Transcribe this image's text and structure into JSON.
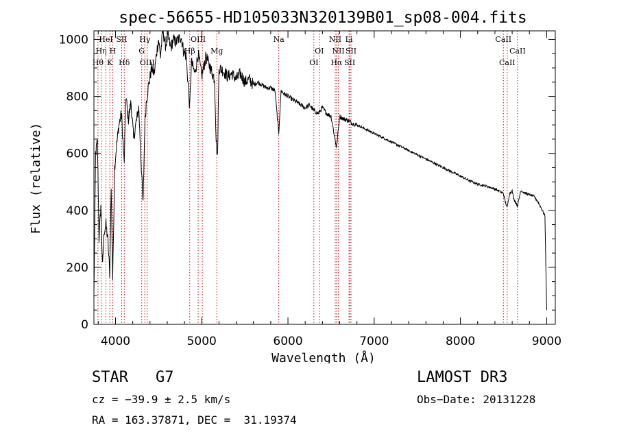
{
  "chart_data": {
    "type": "line",
    "title": "spec-56655-HD105033N320139B01_sp08-004.fits",
    "xlabel": "Wavelength (Å)",
    "ylabel": "Flux (relative)",
    "xlim": [
      3750,
      9100
    ],
    "ylim": [
      0,
      1030
    ],
    "x_ticks": [
      4000,
      5000,
      6000,
      7000,
      8000,
      9000
    ],
    "y_ticks": [
      0,
      200,
      400,
      600,
      800,
      1000
    ],
    "grid": false,
    "series": [
      {
        "name": "flux",
        "x": [
          3750,
          3770,
          3790,
          3800,
          3810,
          3830,
          3850,
          3870,
          3890,
          3910,
          3933,
          3950,
          3968,
          3990,
          4010,
          4040,
          4070,
          4101,
          4120,
          4150,
          4180,
          4210,
          4240,
          4270,
          4300,
          4320,
          4340,
          4360,
          4390,
          4420,
          4450,
          4480,
          4500,
          4520,
          4550,
          4580,
          4610,
          4640,
          4670,
          4700,
          4730,
          4760,
          4790,
          4820,
          4861,
          4880,
          4920,
          4960,
          5000,
          5050,
          5100,
          5150,
          5167,
          5183,
          5200,
          5250,
          5300,
          5350,
          5400,
          5450,
          5500,
          5550,
          5600,
          5650,
          5700,
          5750,
          5800,
          5850,
          5893,
          5920,
          5950,
          6000,
          6050,
          6100,
          6150,
          6200,
          6250,
          6300,
          6350,
          6400,
          6450,
          6500,
          6563,
          6600,
          6650,
          6700,
          6750,
          6800,
          6900,
          7000,
          7100,
          7200,
          7300,
          7400,
          7500,
          7600,
          7700,
          7800,
          7900,
          8000,
          8100,
          8200,
          8300,
          8400,
          8498,
          8520,
          8542,
          8570,
          8600,
          8620,
          8662,
          8700,
          8750,
          8800,
          8850,
          8900,
          8950,
          8980,
          9000
        ],
        "y": [
          100,
          600,
          640,
          470,
          300,
          420,
          200,
          330,
          350,
          300,
          180,
          480,
          160,
          550,
          620,
          700,
          740,
          560,
          800,
          720,
          780,
          650,
          710,
          760,
          550,
          420,
          700,
          790,
          850,
          900,
          880,
          960,
          1000,
          940,
          1030,
          980,
          1010,
          970,
          1000,
          990,
          1000,
          1010,
          960,
          940,
          760,
          920,
          880,
          950,
          870,
          940,
          900,
          860,
          650,
          580,
          900,
          890,
          870,
          880,
          860,
          880,
          850,
          860,
          840,
          850,
          840,
          830,
          830,
          820,
          670,
          820,
          810,
          800,
          790,
          780,
          770,
          760,
          770,
          750,
          740,
          760,
          740,
          730,
          620,
          730,
          720,
          715,
          705,
          700,
          685,
          670,
          655,
          640,
          625,
          610,
          595,
          580,
          565,
          550,
          535,
          520,
          505,
          492,
          485,
          475,
          460,
          430,
          410,
          460,
          468,
          440,
          415,
          470,
          460,
          455,
          450,
          430,
          400,
          380,
          50
        ]
      }
    ],
    "line_markers": [
      {
        "wl": 3797,
        "label": "Hθ",
        "tier": 3
      },
      {
        "wl": 3835,
        "label": "Hη",
        "tier": 2
      },
      {
        "wl": 3889,
        "label": "HeI",
        "tier": 1
      },
      {
        "wl": 3934,
        "label": "K",
        "tier": 3
      },
      {
        "wl": 3968,
        "label": "H",
        "tier": 2
      },
      {
        "wl": 4072,
        "label": "SII",
        "tier": 1
      },
      {
        "wl": 4102,
        "label": "Hδ",
        "tier": 3
      },
      {
        "wl": 4304,
        "label": "G",
        "tier": 2
      },
      {
        "wl": 4340,
        "label": "Hγ",
        "tier": 1
      },
      {
        "wl": 4368,
        "label": "OIII",
        "tier": 3
      },
      {
        "wl": 4861,
        "label": "Hβ",
        "tier": 2
      },
      {
        "wl": 4959,
        "label": "OIII",
        "tier": 1
      },
      {
        "wl": 5007,
        "label": "",
        "tier": 0
      },
      {
        "wl": 5175,
        "label": "Mg",
        "tier": 2
      },
      {
        "wl": 5893,
        "label": "Na",
        "tier": 1
      },
      {
        "wl": 6300,
        "label": "OI",
        "tier": 3
      },
      {
        "wl": 6364,
        "label": "OI",
        "tier": 2
      },
      {
        "wl": 6548,
        "label": "NII",
        "tier": 1
      },
      {
        "wl": 6563,
        "label": "Hα",
        "tier": 3
      },
      {
        "wl": 6584,
        "label": "NII",
        "tier": 2
      },
      {
        "wl": 6708,
        "label": "Li",
        "tier": 1
      },
      {
        "wl": 6716,
        "label": "SII",
        "tier": 3
      },
      {
        "wl": 6731,
        "label": "SII",
        "tier": 2
      },
      {
        "wl": 8498,
        "label": "CaII",
        "tier": 1
      },
      {
        "wl": 8542,
        "label": "CaII",
        "tier": 3
      },
      {
        "wl": 8662,
        "label": "CaII",
        "tier": 2
      }
    ]
  },
  "info": {
    "obj_class": "STAR",
    "subclass": "G7",
    "survey": "LAMOST DR3",
    "cz": "cz = −39.9 ± 2.5 km/s",
    "obs_date": "Obs−Date: 20131228",
    "radec": "RA = 163.37871, DEC =  31.19374"
  }
}
